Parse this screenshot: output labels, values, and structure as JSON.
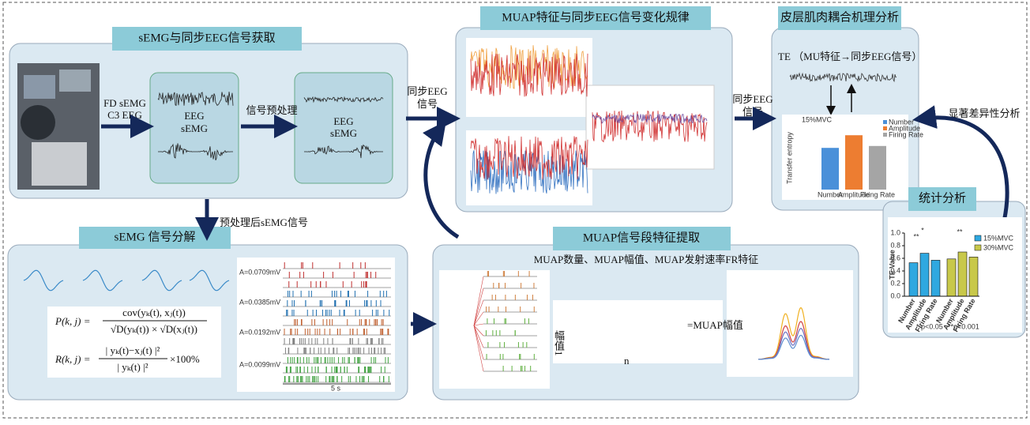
{
  "acquisition": {
    "title": "sEMG与同步EEG信号获取",
    "inputs": [
      "FD sEMG",
      "C3 EEG"
    ],
    "raw_box": [
      "EEG",
      "sEMG"
    ],
    "preprocess": "信号预处理",
    "clean_box": [
      "EEG",
      "sEMG"
    ]
  },
  "sync_eeg_1": [
    "同步EEG",
    "信号"
  ],
  "preprocessed": "预处理后sEMG信号",
  "decomposition": {
    "title": "sEMG 信号分解",
    "formula_p": [
      "P(k, j) =",
      "cov(yₖ(t), xⱼ(t))",
      "√D(yₖ(t)) × √D(xⱼ(t))"
    ],
    "formula_r": [
      "R(k, j) =",
      "| yₖ(t)−xⱼ(t) |²",
      "| yₖ(t) |²",
      "×100%"
    ],
    "amplitudes": [
      "A=0.0709mV",
      "A=0.0385mV",
      "A=0.0192mV",
      "A=0.0099mV"
    ],
    "duration": "5 s"
  },
  "muap_features": {
    "title": "MUAP特征与同步EEG信号变化规律"
  },
  "extraction": {
    "title": "MUAP信号段特征提取",
    "subtitle": "MUAP数量、MUAP幅值、MUAP发射速率FR特征",
    "amp_label": "幅值1",
    "n_label": "n",
    "result": "=MUAP幅值"
  },
  "sync_eeg_2": [
    "同步EEG",
    "信号"
  ],
  "coupling": {
    "title": "皮层肌肉耦合机理分析",
    "te_label": "TE （MU特征→同步EEG信号）"
  },
  "te_chart": {
    "type": "bar",
    "title": "15%MVC",
    "ylabel": "Transfer entropy",
    "categories": [
      "Number",
      "Amplitude",
      "Firing Rate"
    ],
    "values": [
      0.66,
      0.86,
      0.69
    ],
    "colors": [
      "#4a90d9",
      "#ed7d31",
      "#a5a5a5"
    ],
    "ylim": [
      0,
      1
    ]
  },
  "significance": "显著差异性分析",
  "stats": {
    "title": "统计分析",
    "chart": {
      "type": "bar",
      "ylabel": "TE Value",
      "categories": [
        "Number",
        "Amplitude",
        "Firing Rate",
        "Number",
        "Amplitude",
        "Firing Rate"
      ],
      "series": [
        {
          "name": "15%MVC",
          "color": "#2fa8e0",
          "values": [
            0.53,
            0.68,
            0.57
          ]
        },
        {
          "name": "30%MVC",
          "color": "#c8c84a",
          "values": [
            0.59,
            0.7,
            0.62
          ]
        }
      ],
      "ylim": [
        0,
        1
      ],
      "yticks": [
        {
          "value": 0,
          "label": "0.0"
        },
        {
          "value": 0.2,
          "label": "0.2"
        },
        {
          "value": 0.4,
          "label": "0.4"
        },
        {
          "value": 0.6,
          "label": "0.6"
        },
        {
          "value": 0.8,
          "label": "0.8"
        },
        {
          "value": 1,
          "label": "1.0"
        }
      ],
      "stars": [
        "**",
        "*",
        "**"
      ],
      "notes": [
        "* p<0.05",
        "**p<0.001"
      ]
    }
  }
}
